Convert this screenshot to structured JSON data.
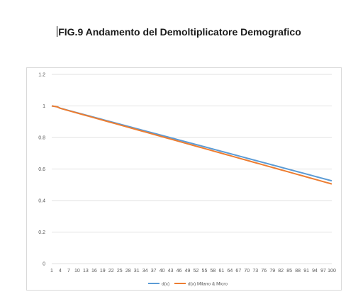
{
  "figure": {
    "title": "FIG.9 Andamento del Demoltiplicatore Demografico"
  },
  "chart_data": {
    "type": "line",
    "x_start": 1,
    "x_end": 100,
    "x_tick_labels": [
      "1",
      "4",
      "7",
      "10",
      "13",
      "16",
      "19",
      "22",
      "25",
      "28",
      "31",
      "34",
      "37",
      "40",
      "43",
      "46",
      "49",
      "52",
      "55",
      "58",
      "61",
      "64",
      "67",
      "70",
      "73",
      "76",
      "79",
      "82",
      "85",
      "88",
      "91",
      "94",
      "97",
      "100"
    ],
    "y_tick_labels": [
      "0",
      "0.2",
      "0.4",
      "0.6",
      "0.8",
      "1",
      "1.2"
    ],
    "ylim": [
      0,
      1.2
    ],
    "grid": true,
    "legend_position": "bottom",
    "series": [
      {
        "name": "d(x)",
        "color": "#5b9bd5",
        "start_value": 1.0,
        "end_value": 0.525
      },
      {
        "name": "d(x) Milano & Micro",
        "color": "#ed7d31",
        "start_value": 1.0,
        "end_value": 0.505
      }
    ]
  }
}
